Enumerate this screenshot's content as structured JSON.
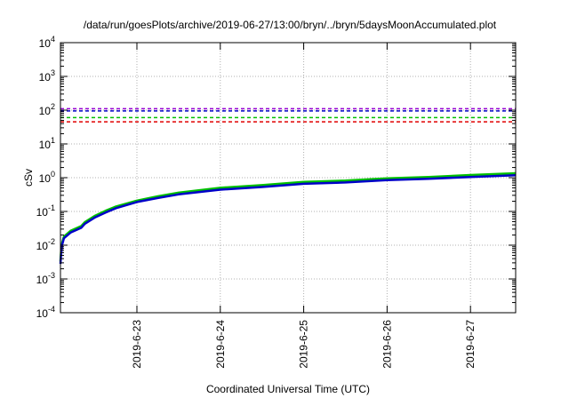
{
  "chart_data": {
    "type": "line",
    "title": "/data/run/goesPlots/archive/2019-06-27/13:00/bryn/../bryn/5daysMoonAccumulated.plot",
    "xlabel": "Coordinated Universal Time (UTC)",
    "ylabel": "cSv",
    "yscale": "log",
    "ylim": [
      0.0001,
      10000
    ],
    "xlim": [
      "2019-06-22 02:00",
      "2019-06-27 13:00"
    ],
    "grid": true,
    "legend": "none",
    "x_ticks": [
      "2019-6-23",
      "2019-6-24",
      "2019-6-25",
      "2019-6-26",
      "2019-6-27"
    ],
    "y_ticks": [
      {
        "base": "10",
        "exp": "-4"
      },
      {
        "base": "10",
        "exp": "-3"
      },
      {
        "base": "10",
        "exp": "-2"
      },
      {
        "base": "10",
        "exp": "-1"
      },
      {
        "base": "10",
        "exp": "0"
      },
      {
        "base": "10",
        "exp": "1"
      },
      {
        "base": "10",
        "exp": "2"
      },
      {
        "base": "10",
        "exp": "3"
      },
      {
        "base": "10",
        "exp": "4"
      }
    ],
    "reference_lines": [
      {
        "value": 110,
        "color": "#9400d3"
      },
      {
        "value": 95,
        "color": "#0000c8"
      },
      {
        "value": 60,
        "color": "#00c000"
      },
      {
        "value": 45,
        "color": "#e00000"
      }
    ],
    "series": [
      {
        "color": "#00c000",
        "x": [
          "2019-06-22 02:00",
          "2019-06-22 02:10",
          "2019-06-22 02:30",
          "2019-06-22 03:00",
          "2019-06-22 05:00",
          "2019-06-22 08:00",
          "2019-06-22 09:00",
          "2019-06-22 12:00",
          "2019-06-22 15:00",
          "2019-06-22 18:00",
          "2019-06-23 00:00",
          "2019-06-23 06:00",
          "2019-06-23 12:00",
          "2019-06-24 00:00",
          "2019-06-24 12:00",
          "2019-06-25 00:00",
          "2019-06-25 12:00",
          "2019-06-26 00:00",
          "2019-06-26 12:00",
          "2019-06-27 00:00",
          "2019-06-27 13:00"
        ],
        "values": [
          0.0033,
          0.0065,
          0.012,
          0.018,
          0.027,
          0.037,
          0.048,
          0.075,
          0.105,
          0.14,
          0.21,
          0.28,
          0.36,
          0.5,
          0.6,
          0.75,
          0.82,
          0.96,
          1.05,
          1.2,
          1.35
        ]
      },
      {
        "color": "#0000c8",
        "x": [
          "2019-06-22 02:00",
          "2019-06-22 02:10",
          "2019-06-22 02:30",
          "2019-06-22 03:00",
          "2019-06-22 05:00",
          "2019-06-22 08:00",
          "2019-06-22 09:00",
          "2019-06-22 12:00",
          "2019-06-22 15:00",
          "2019-06-22 18:00",
          "2019-06-23 00:00",
          "2019-06-23 06:00",
          "2019-06-23 12:00",
          "2019-06-24 00:00",
          "2019-06-24 12:00",
          "2019-06-25 00:00",
          "2019-06-25 12:00",
          "2019-06-26 00:00",
          "2019-06-26 12:00",
          "2019-06-27 00:00",
          "2019-06-27 13:00"
        ],
        "values": [
          0.0028,
          0.0055,
          0.0105,
          0.016,
          0.024,
          0.033,
          0.043,
          0.067,
          0.093,
          0.125,
          0.19,
          0.25,
          0.32,
          0.44,
          0.53,
          0.66,
          0.72,
          0.85,
          0.93,
          1.05,
          1.18
        ]
      }
    ]
  }
}
